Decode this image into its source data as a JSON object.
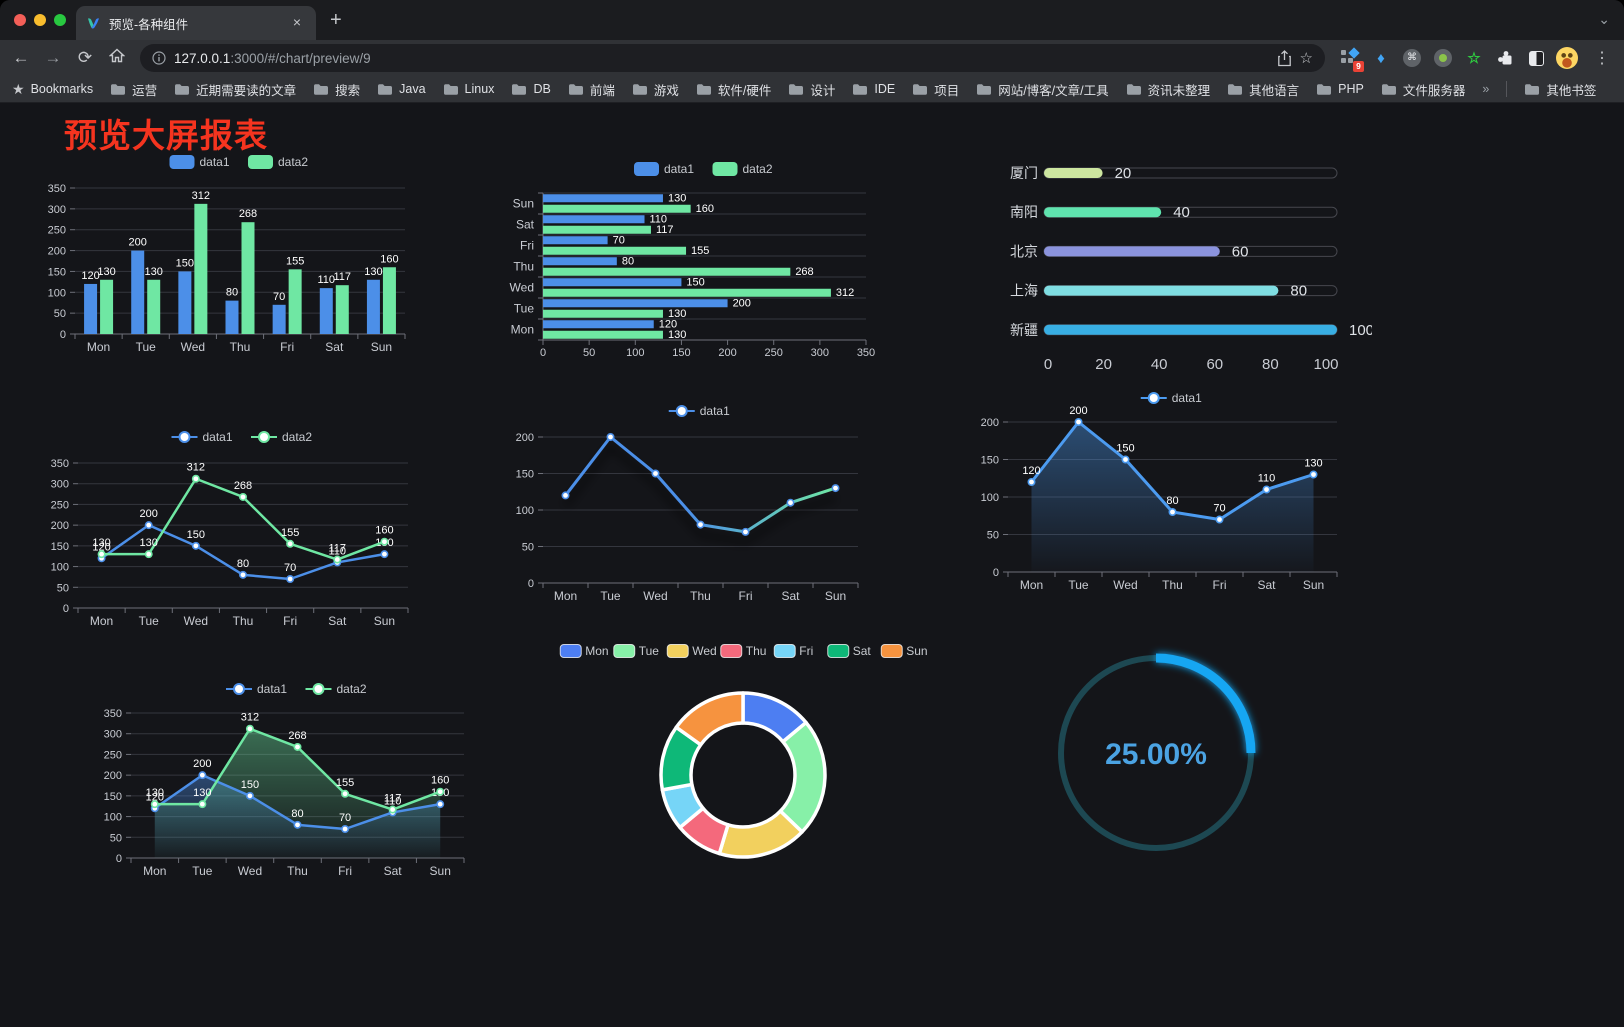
{
  "browser": {
    "window_controls": {
      "close_color": "#F35F58",
      "minimize_color": "#F9BD2E",
      "zoom_color": "#28C840"
    },
    "tab": {
      "title": "预览-各种组件",
      "close_glyph": "×"
    },
    "new_tab_glyph": "+",
    "nav": {
      "back": "←",
      "forward": "→",
      "reload": "⟳"
    },
    "url": {
      "host": "127.0.0.1",
      "rest": ":3000/#/chart/preview/9"
    },
    "extension_badge": "9",
    "bookmarks_bar": {
      "root_label": "Bookmarks",
      "folders": [
        "运营",
        "近期需要读的文章",
        "搜索",
        "Java",
        "Linux",
        "DB",
        "前端",
        "游戏",
        "软件/硬件",
        "设计",
        "IDE",
        "项目",
        "网站/博客/文章/工具",
        "资讯未整理",
        "其他语言",
        "PHP",
        "文件服务器"
      ],
      "overflow_glyph": "»",
      "other_label": "其他书签"
    }
  },
  "page": {
    "title": "预览大屏报表",
    "title_color": "#F5341F",
    "background": "#141519"
  },
  "chart_data": [
    {
      "id": "bar-vertical",
      "type": "bar",
      "categories": [
        "Mon",
        "Tue",
        "Wed",
        "Thu",
        "Fri",
        "Sat",
        "Sun"
      ],
      "series": [
        {
          "name": "data1",
          "color": "#4C8FE8",
          "values": [
            120,
            200,
            150,
            80,
            70,
            110,
            130
          ]
        },
        {
          "name": "data2",
          "color": "#6FE7A3",
          "values": [
            130,
            130,
            312,
            268,
            155,
            117,
            160
          ]
        }
      ],
      "ylim": [
        0,
        350
      ],
      "ytick": 50,
      "labels": true,
      "legend_position": "top",
      "grid": true
    },
    {
      "id": "bar-horizontal",
      "type": "bar",
      "orientation": "horizontal",
      "categories": [
        "Mon",
        "Tue",
        "Wed",
        "Thu",
        "Fri",
        "Sat",
        "Sun"
      ],
      "series": [
        {
          "name": "data1",
          "color": "#4C8FE8",
          "values": [
            120,
            200,
            150,
            80,
            70,
            110,
            130
          ]
        },
        {
          "name": "data2",
          "color": "#6FE7A3",
          "values": [
            130,
            130,
            312,
            268,
            155,
            117,
            160
          ]
        }
      ],
      "xlim": [
        0,
        350
      ],
      "xtick": 50,
      "labels": true,
      "legend_position": "top",
      "grid": true
    },
    {
      "id": "progress",
      "type": "bar",
      "orientation": "horizontal-progress",
      "items": [
        {
          "label": "厦门",
          "value": 20,
          "color": "#CDE6A0"
        },
        {
          "label": "南阳",
          "value": 40,
          "color": "#5FE3AE"
        },
        {
          "label": "北京",
          "value": 60,
          "color": "#8B93DD"
        },
        {
          "label": "上海",
          "value": 80,
          "color": "#7FDDE2"
        },
        {
          "label": "新疆",
          "value": 100,
          "color": "#38AEE3"
        }
      ],
      "xlim": [
        0,
        100
      ],
      "xticks": [
        0,
        20,
        40,
        60,
        80,
        100
      ]
    },
    {
      "id": "line-two",
      "type": "line",
      "categories": [
        "Mon",
        "Tue",
        "Wed",
        "Thu",
        "Fri",
        "Sat",
        "Sun"
      ],
      "series": [
        {
          "name": "data1",
          "color": "#4C8FE8",
          "values": [
            120,
            200,
            150,
            80,
            70,
            110,
            130
          ]
        },
        {
          "name": "data2",
          "color": "#6FE7A3",
          "values": [
            130,
            130,
            312,
            268,
            155,
            117,
            160
          ]
        }
      ],
      "ylim": [
        0,
        350
      ],
      "ytick": 50,
      "labels": true,
      "legend_position": "top",
      "grid": true
    },
    {
      "id": "line-gradient",
      "type": "line",
      "categories": [
        "Mon",
        "Tue",
        "Wed",
        "Thu",
        "Fri",
        "Sat",
        "Sun"
      ],
      "series": [
        {
          "name": "data1",
          "gradient": [
            "#4C8FE8",
            "#6FE7A3"
          ],
          "values": [
            120,
            200,
            150,
            80,
            70,
            110,
            130
          ]
        }
      ],
      "ylim": [
        0,
        200
      ],
      "ytick": 50,
      "labels": false,
      "shadow": true,
      "legend_position": "top",
      "grid": true
    },
    {
      "id": "area-blue",
      "type": "area",
      "categories": [
        "Mon",
        "Tue",
        "Wed",
        "Thu",
        "Fri",
        "Sat",
        "Sun"
      ],
      "series": [
        {
          "name": "data1",
          "color": "#4C9BF0",
          "values": [
            120,
            200,
            150,
            80,
            70,
            110,
            130
          ],
          "area": true
        }
      ],
      "ylim": [
        0,
        200
      ],
      "ytick": 50,
      "labels": true,
      "legend_position": "top",
      "grid": true
    },
    {
      "id": "area-two",
      "type": "area",
      "categories": [
        "Mon",
        "Tue",
        "Wed",
        "Thu",
        "Fri",
        "Sat",
        "Sun"
      ],
      "series": [
        {
          "name": "data1",
          "color": "#4C8FE8",
          "values": [
            120,
            200,
            150,
            80,
            70,
            110,
            130
          ],
          "area": true
        },
        {
          "name": "data2",
          "color": "#6FE7A3",
          "values": [
            130,
            130,
            312,
            268,
            155,
            117,
            160
          ],
          "area": true
        }
      ],
      "ylim": [
        0,
        350
      ],
      "ytick": 50,
      "labels": true,
      "legend_position": "top",
      "grid": true
    },
    {
      "id": "donut",
      "type": "pie",
      "labels": [
        "Mon",
        "Tue",
        "Wed",
        "Thu",
        "Fri",
        "Sat",
        "Sun"
      ],
      "values": [
        120,
        200,
        150,
        80,
        70,
        110,
        130
      ],
      "colors": [
        "#4D7EF2",
        "#87F0A8",
        "#F2D05E",
        "#F4697C",
        "#76D5F7",
        "#0EB878",
        "#F6933F"
      ],
      "border_color": "#FFFFFF",
      "legend_position": "top"
    },
    {
      "id": "gauge",
      "type": "gauge",
      "value": 25,
      "label": "25.00%",
      "color": "#15A6F2",
      "track_color": "#1D4852",
      "text_color": "#4BA3E3"
    }
  ]
}
